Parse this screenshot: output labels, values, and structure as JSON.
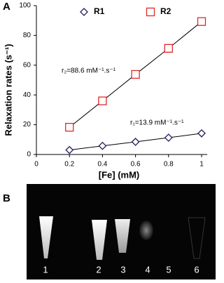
{
  "chart_data": {
    "type": "line",
    "panel_label": "A",
    "x": [
      0.2,
      0.4,
      0.6,
      0.8,
      1
    ],
    "series": [
      {
        "name": "R1",
        "color": "#22225a",
        "marker": "diamond",
        "values": [
          3,
          5.8,
          8.5,
          11.3,
          14.2
        ]
      },
      {
        "name": "R2",
        "color": "#e02828",
        "marker": "square",
        "values": [
          18.3,
          36,
          53.8,
          71.3,
          89.3
        ]
      }
    ],
    "xlabel": "[Fe] (mM)",
    "ylabel": "Relaxation rates (s⁻¹)",
    "xlim": [
      0,
      1
    ],
    "xticks": [
      0,
      0.2,
      0.4,
      0.6,
      0.8,
      1
    ],
    "ylim": [
      0,
      100
    ],
    "yticks": [
      0,
      20,
      40,
      60,
      80,
      100
    ],
    "annotations": [
      "r₂=88.6 mM⁻¹.s⁻¹",
      "r₁=13.9 mM⁻¹.s⁻¹"
    ]
  },
  "image": {
    "panel_label": "B",
    "labels": [
      "1",
      "2",
      "3",
      "4",
      "5",
      "6"
    ]
  }
}
